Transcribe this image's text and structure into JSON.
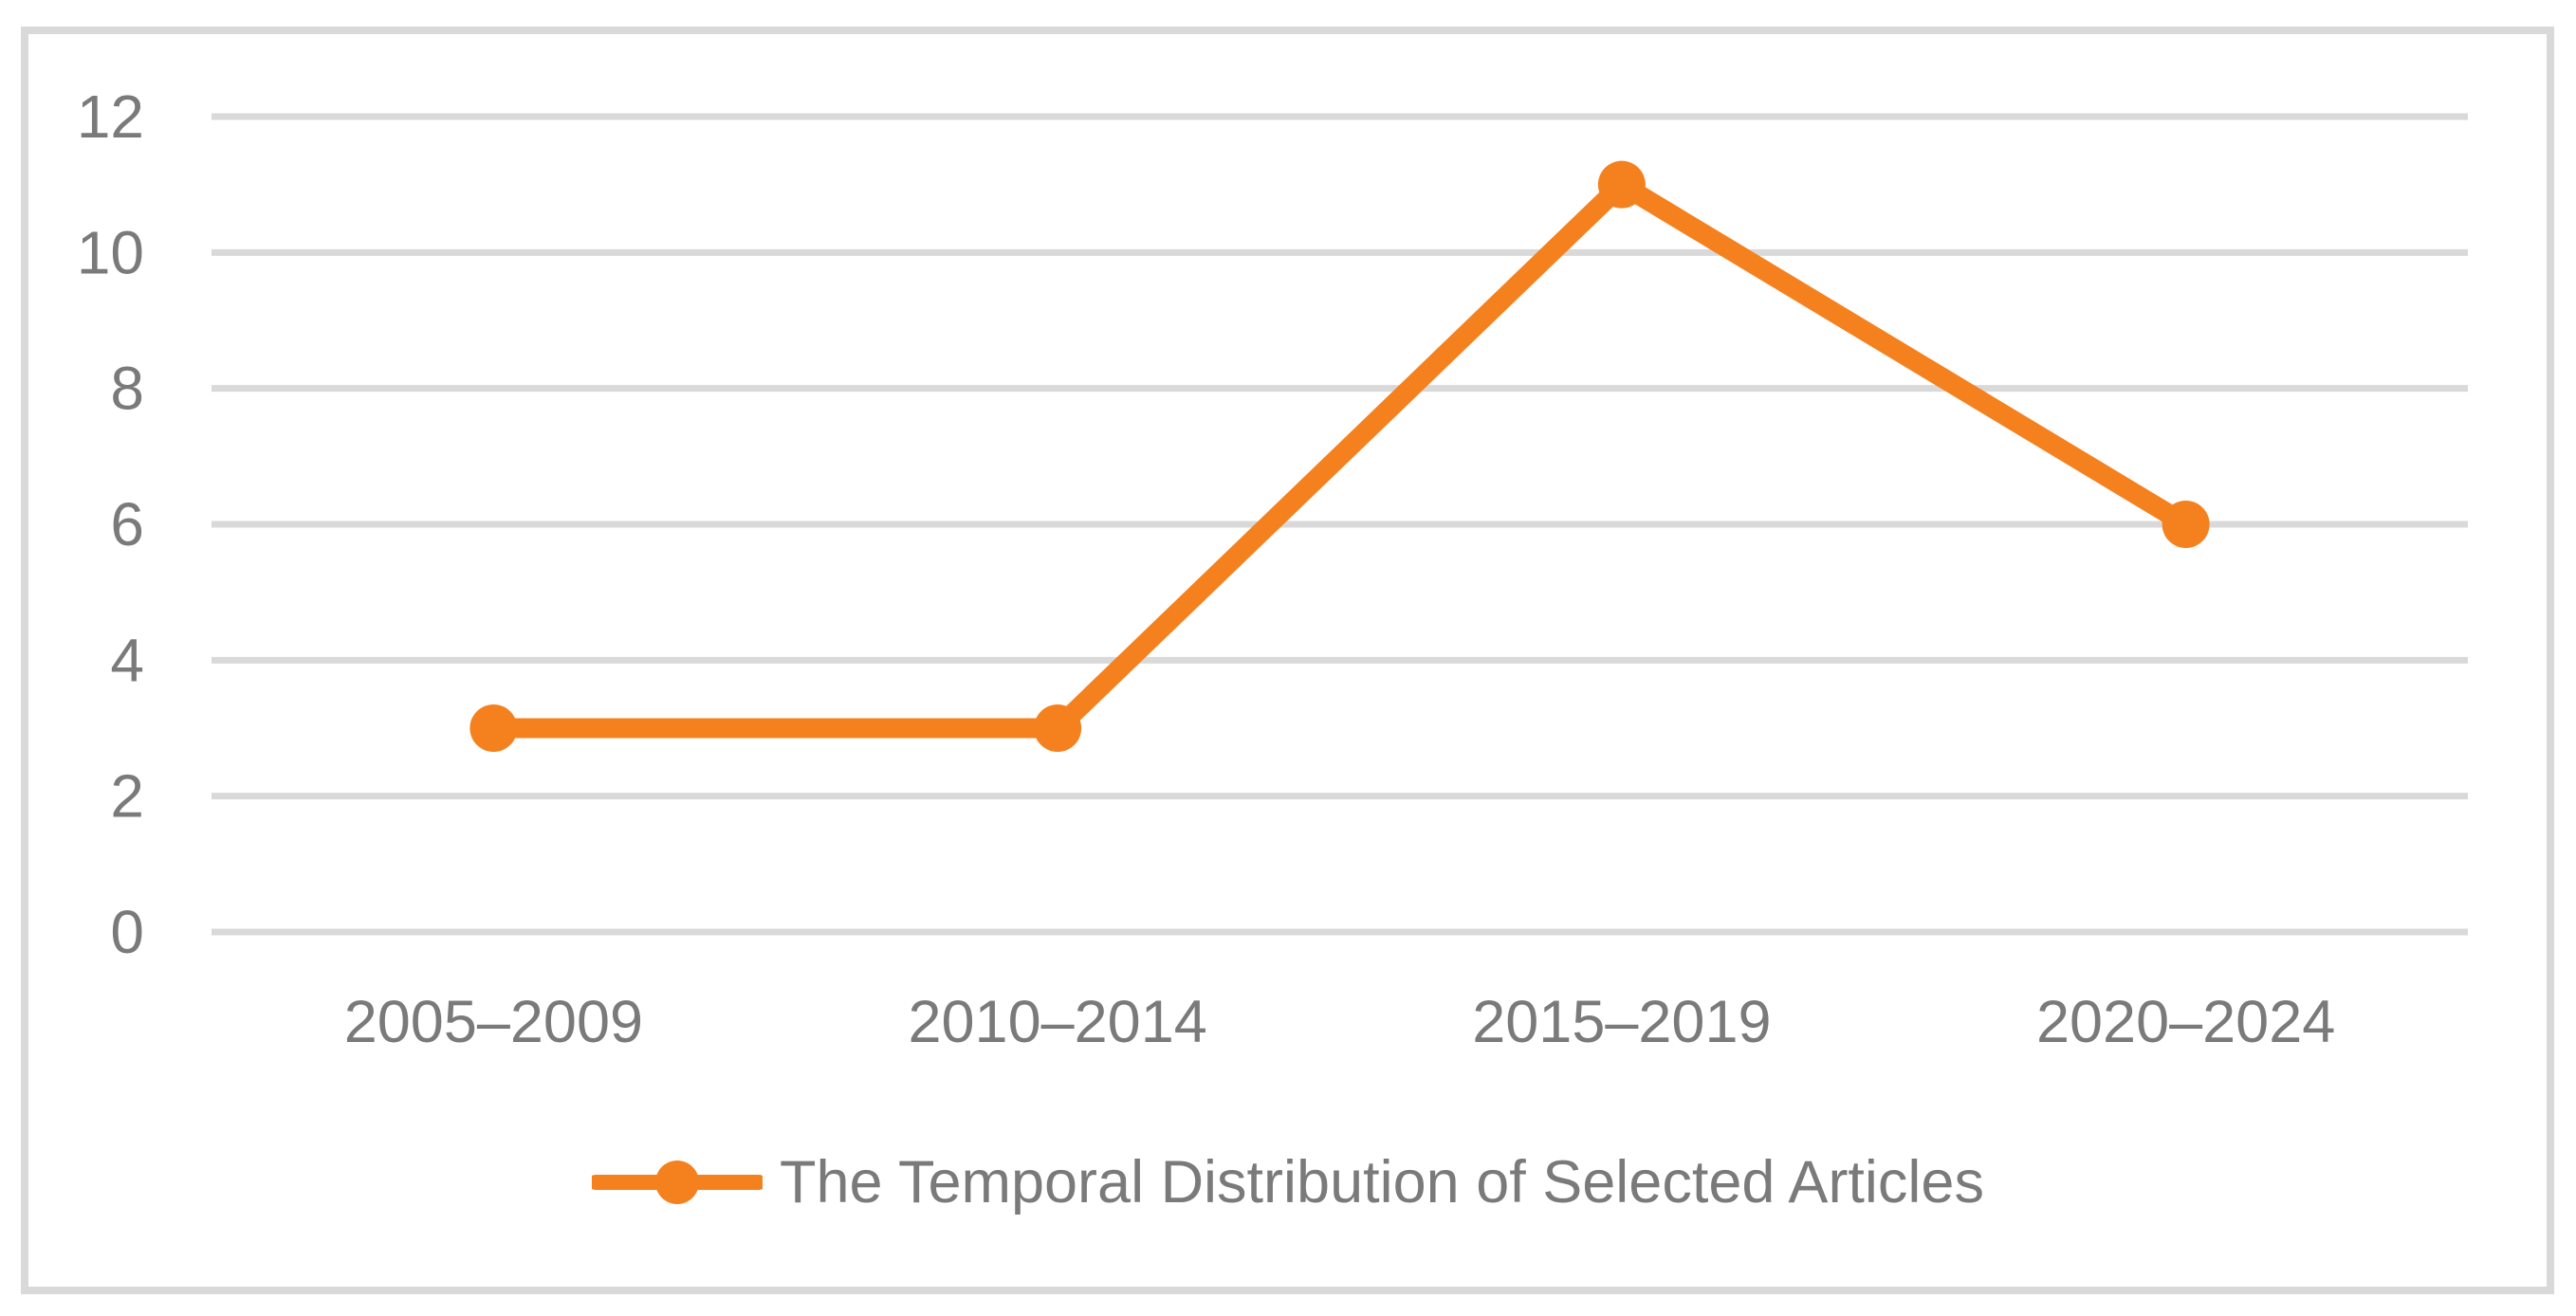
{
  "chart_data": {
    "type": "line",
    "categories": [
      "2005–2009",
      "2010–2014",
      "2015–2019",
      "2020–2024"
    ],
    "series": [
      {
        "name": "The Temporal Distribution of Selected Articles",
        "values": [
          3,
          3,
          11,
          6
        ]
      }
    ],
    "title": "",
    "xlabel": "",
    "ylabel": "",
    "ylim": [
      0,
      12
    ],
    "yticks": [
      0,
      2,
      4,
      6,
      8,
      10,
      12
    ],
    "grid": true,
    "legend_position": "bottom-center",
    "marker": "circle"
  },
  "colors": {
    "series": "#F5811E",
    "gridline": "#D9D9D9",
    "frame_border": "#D9D9D9",
    "axis_text": "#7A7A7A"
  }
}
